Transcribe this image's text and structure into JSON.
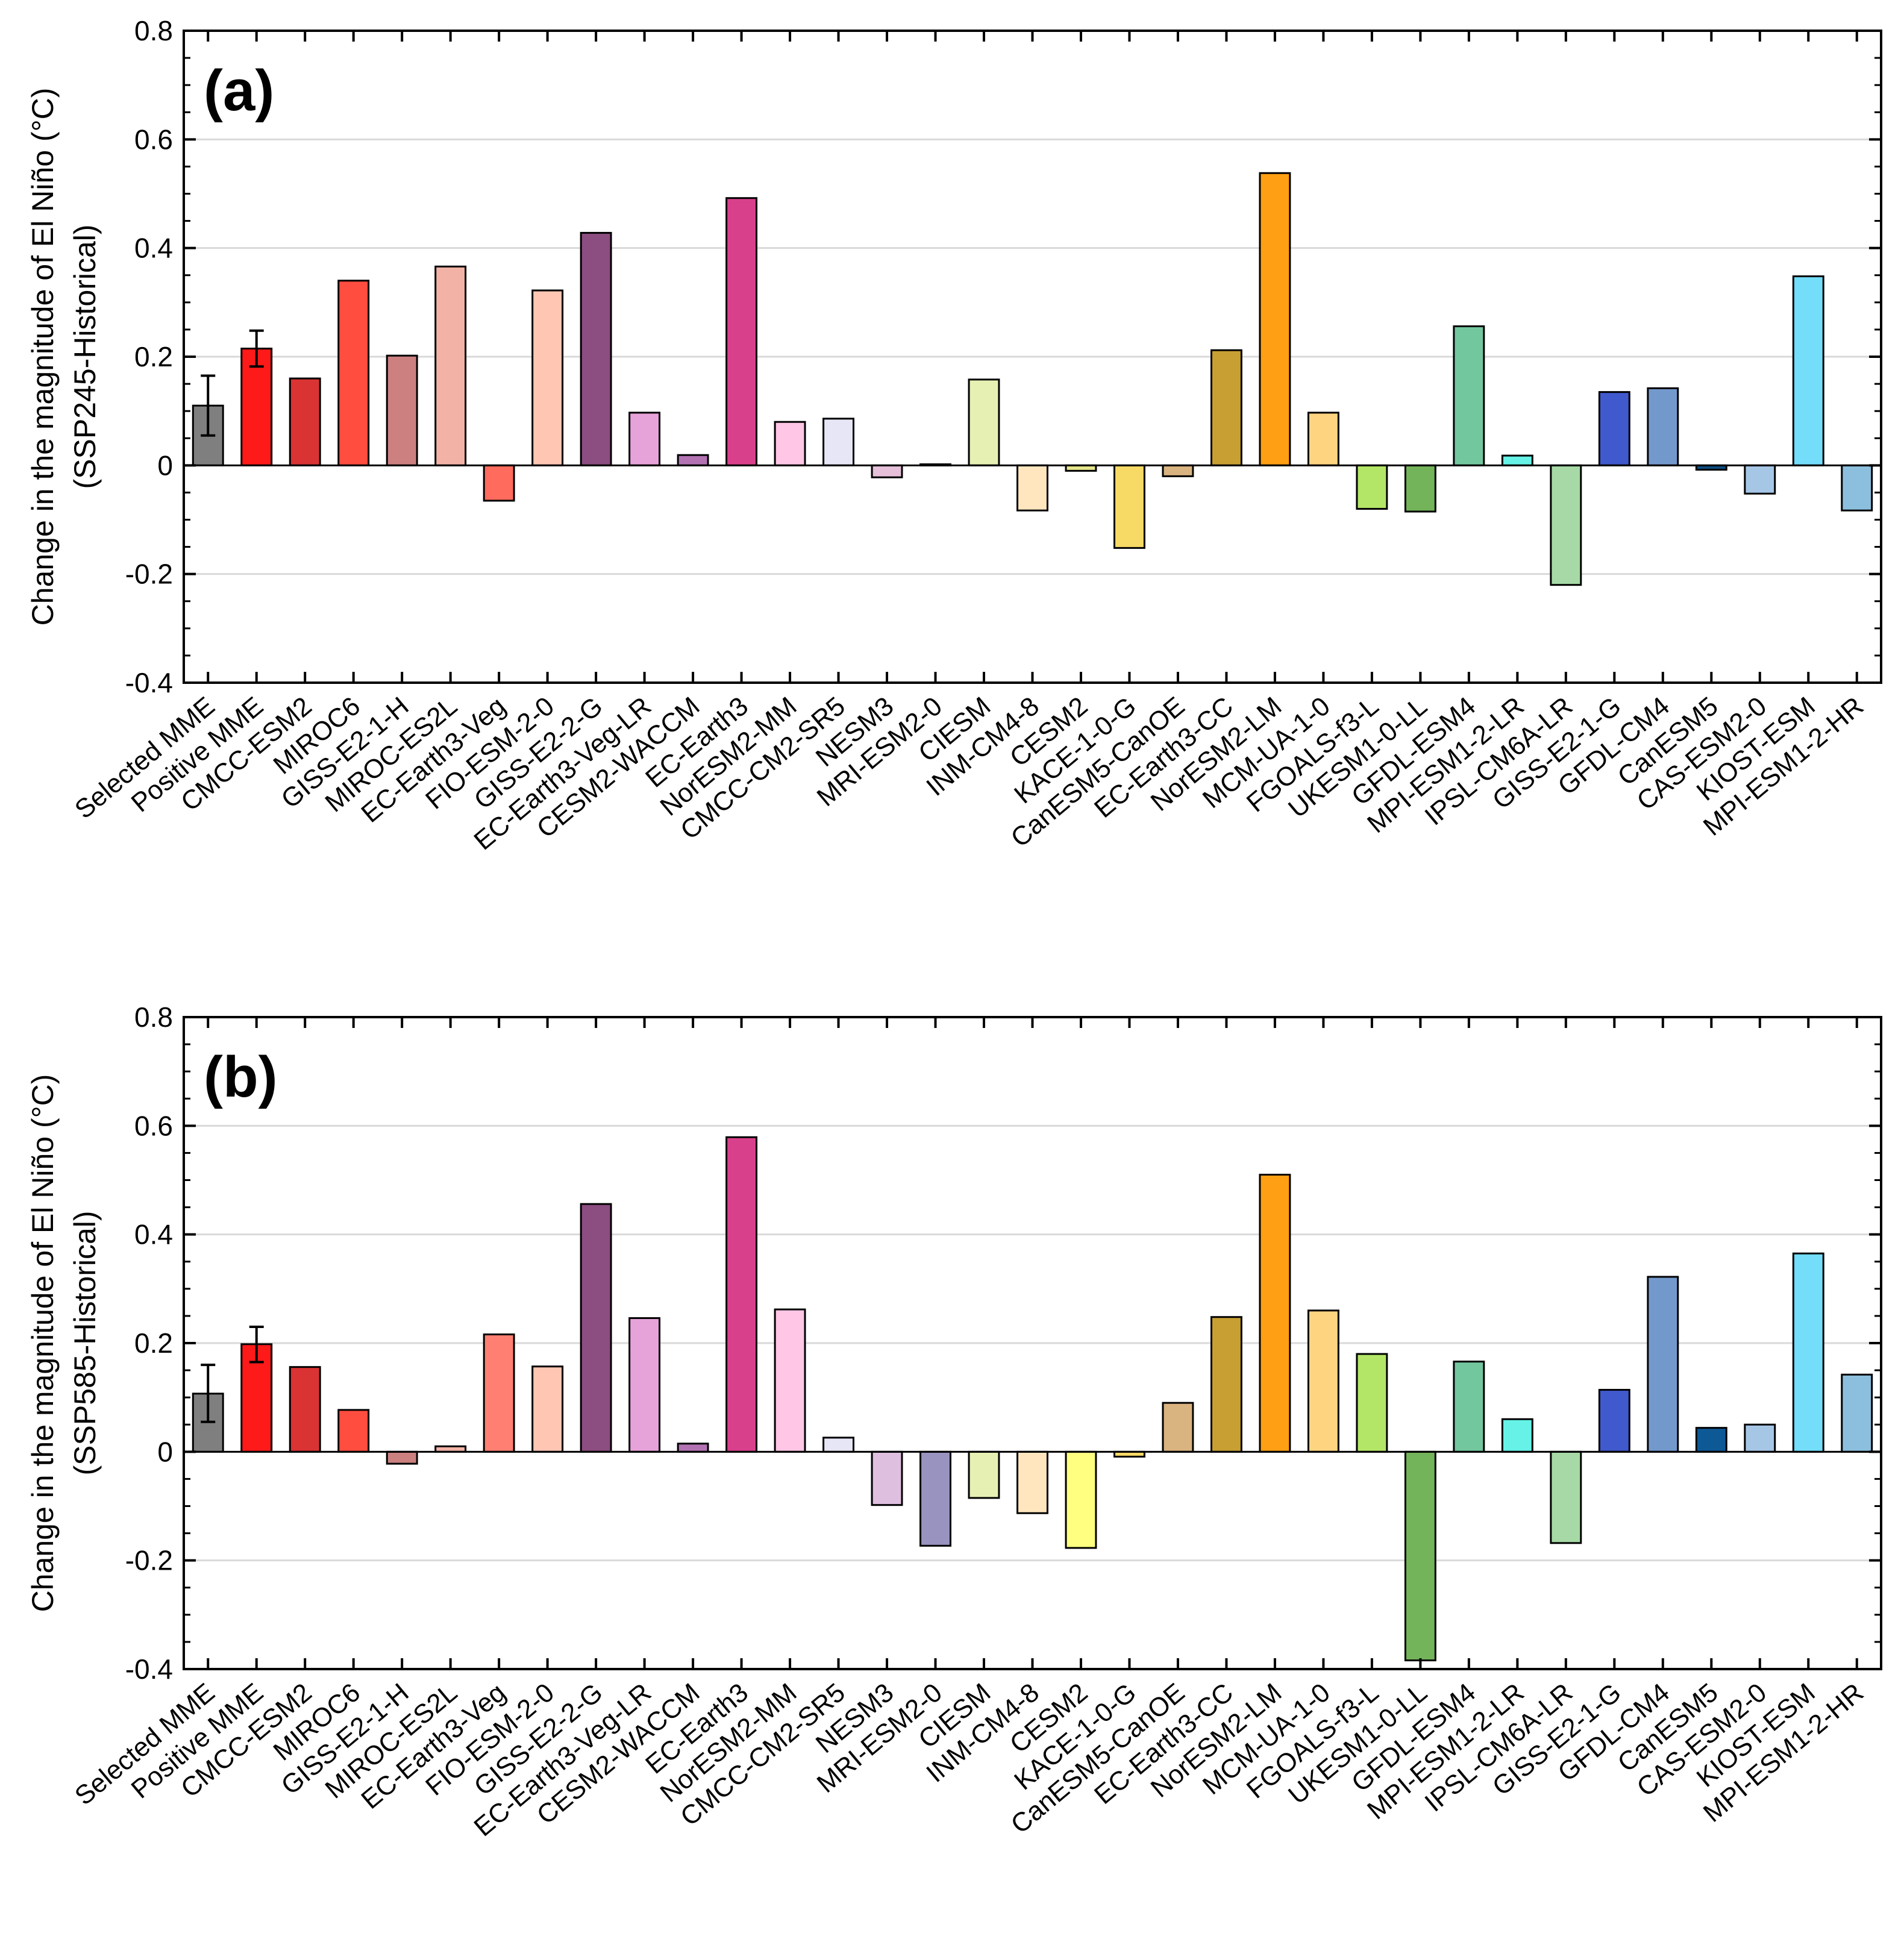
{
  "figure": {
    "panels": [
      "a",
      "b"
    ]
  },
  "chart_data": [
    {
      "type": "bar",
      "panel_label": "(a)",
      "title": "",
      "ylabel": "Change in the magnitude of El Niño (°C)",
      "ylabel_sub": "(SSP245-Historical)",
      "xlabel": "",
      "ylim": [
        -0.4,
        0.8
      ],
      "yticks": [
        -0.4,
        -0.2,
        0,
        0.2,
        0.4,
        0.6,
        0.8
      ],
      "ytick_labels": [
        "-0.4",
        "-0.2",
        "0",
        "0.2",
        "0.4",
        "0.6",
        "0.8"
      ],
      "grid": "horizontal",
      "categories": [
        "Selected MME",
        "Positive MME",
        "CMCC-ESM2",
        "MIROC6",
        "GISS-E2-1-H",
        "MIROC-ES2L",
        "EC-Earth3-Veg",
        "FIO-ESM-2-0",
        "GISS-E2-2-G",
        "EC-Earth3-Veg-LR",
        "CESM2-WACCM",
        "EC-Earth3",
        "NorESM2-MM",
        "CMCC-CM2-SR5",
        "NESM3",
        "MRI-ESM2-0",
        "CIESM",
        "INM-CM4-8",
        "CESM2",
        "KACE-1-0-G",
        "CanESM5-CanOE",
        "EC-Earth3-CC",
        "NorESM2-LM",
        "MCM-UA-1-0",
        "FGOALS-f3-L",
        "UKESM1-0-LL",
        "GFDL-ESM4",
        "MPI-ESM1-2-LR",
        "IPSL-CM6A-LR",
        "GISS-E2-1-G",
        "GFDL-CM4",
        "CanESM5",
        "CAS-ESM2-0",
        "KIOST-ESM",
        "MPI-ESM1-2-HR"
      ],
      "values": [
        0.11,
        0.215,
        0.16,
        0.34,
        0.202,
        0.366,
        -0.065,
        0.322,
        0.428,
        0.097,
        0.019,
        0.492,
        0.08,
        0.086,
        -0.022,
        0.002,
        0.158,
        -0.083,
        -0.01,
        -0.152,
        -0.02,
        0.212,
        0.538,
        0.097,
        -0.08,
        -0.085,
        0.256,
        0.018,
        -0.22,
        0.135,
        0.142,
        -0.008,
        -0.052,
        0.348,
        -0.083
      ],
      "error_bars": [
        {
          "category": "Selected MME",
          "low": 0.055,
          "high": 0.165
        },
        {
          "category": "Positive MME",
          "low": 0.182,
          "high": 0.248
        }
      ],
      "colors": [
        "#7f7f7f",
        "#ff1a1a",
        "#d93333",
        "#ff4d40",
        "#cc8080",
        "#f2b3a6",
        "#ff6b5c",
        "#ffc6b3",
        "#8c4d80",
        "#e6a3d9",
        "#b373b3",
        "#d9408c",
        "#ffc6e6",
        "#e6e6f7",
        "#e6bfd9",
        "#a6a6a6",
        "#e6f0b3",
        "#ffe6bf",
        "#e6e68c",
        "#f7d966",
        "#d9b380",
        "#c79f33",
        "#ff9f14",
        "#ffd480",
        "#b3e666",
        "#73b359",
        "#73c79f",
        "#66f2e6",
        "#a6d9a6",
        "#4059cc",
        "#7399cc",
        "#0d4d80",
        "#a6c6e6",
        "#73ddfa",
        "#8cbfdd"
      ]
    },
    {
      "type": "bar",
      "panel_label": "(b)",
      "title": "",
      "ylabel": "Change in the magnitude of El Niño (°C)",
      "ylabel_sub": "(SSP585-Historical)",
      "xlabel": "",
      "ylim": [
        -0.4,
        0.8
      ],
      "yticks": [
        -0.4,
        -0.2,
        0,
        0.2,
        0.4,
        0.6,
        0.8
      ],
      "ytick_labels": [
        "-0.4",
        "-0.2",
        "0",
        "0.2",
        "0.4",
        "0.6",
        "0.8"
      ],
      "grid": "horizontal",
      "categories": [
        "Selected MME",
        "Positive MME",
        "CMCC-ESM2",
        "MIROC6",
        "GISS-E2-1-H",
        "MIROC-ES2L",
        "EC-Earth3-Veg",
        "FIO-ESM-2-0",
        "GISS-E2-2-G",
        "EC-Earth3-Veg-LR",
        "CESM2-WACCM",
        "EC-Earth3",
        "NorESM2-MM",
        "CMCC-CM2-SR5",
        "NESM3",
        "MRI-ESM2-0",
        "CIESM",
        "INM-CM4-8",
        "CESM2",
        "KACE-1-0-G",
        "CanESM5-CanOE",
        "EC-Earth3-CC",
        "NorESM2-LM",
        "MCM-UA-1-0",
        "FGOALS-f3-L",
        "UKESM1-0-LL",
        "GFDL-ESM4",
        "MPI-ESM1-2-LR",
        "IPSL-CM6A-LR",
        "GISS-E2-1-G",
        "GFDL-CM4",
        "CanESM5",
        "CAS-ESM2-0",
        "KIOST-ESM",
        "MPI-ESM1-2-HR"
      ],
      "values": [
        0.107,
        0.198,
        0.156,
        0.077,
        -0.022,
        0.01,
        0.216,
        0.157,
        0.456,
        0.246,
        0.015,
        0.579,
        0.262,
        0.026,
        -0.098,
        -0.173,
        -0.085,
        -0.113,
        -0.177,
        -0.009,
        0.09,
        0.248,
        0.51,
        0.26,
        0.18,
        -0.384,
        0.166,
        0.06,
        -0.168,
        0.114,
        0.322,
        0.044,
        0.05,
        0.365,
        0.142
      ],
      "error_bars": [
        {
          "category": "Selected MME",
          "low": 0.055,
          "high": 0.16
        },
        {
          "category": "Positive MME",
          "low": 0.165,
          "high": 0.23
        }
      ],
      "colors": [
        "#7f7f7f",
        "#ff1a1a",
        "#d93333",
        "#ff4d40",
        "#cc8080",
        "#f2b3a6",
        "#ff8073",
        "#ffc6b3",
        "#8c4d80",
        "#e6a3d9",
        "#b373b3",
        "#d9408c",
        "#ffc6e6",
        "#e6e6f7",
        "#dfbfdf",
        "#9993bf",
        "#e6f0b3",
        "#ffe6bf",
        "#ffff80",
        "#f7d966",
        "#d9b380",
        "#c79f33",
        "#ff9f14",
        "#ffd480",
        "#b3e666",
        "#73b359",
        "#73c79f",
        "#66f2e6",
        "#a6d9a6",
        "#4059cc",
        "#7399cc",
        "#0d5996",
        "#a6c6e6",
        "#73ddfa",
        "#8cbfdd"
      ]
    }
  ]
}
